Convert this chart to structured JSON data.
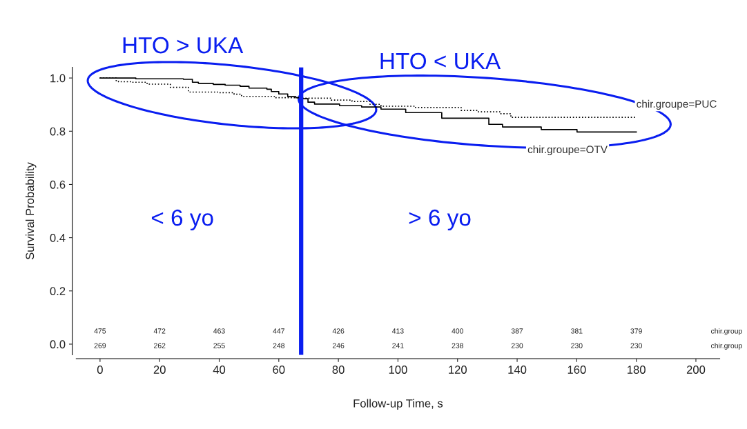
{
  "chart_data": {
    "type": "step",
    "xlabel": "Follow-up Time, s",
    "ylabel": "Survival Probability",
    "xlim": [
      -8,
      208
    ],
    "ylim": [
      -0.04,
      1.04
    ],
    "xticks": [
      0,
      20,
      40,
      60,
      80,
      100,
      120,
      140,
      160,
      180,
      200
    ],
    "yticks": [
      {
        "value": 0,
        "label": "0.0"
      },
      {
        "value": 0.2,
        "label": "0.2"
      },
      {
        "value": 0.4,
        "label": "0.4"
      },
      {
        "value": 0.6,
        "label": "0.6"
      },
      {
        "value": 0.8,
        "label": "0.8"
      },
      {
        "value": 1,
        "label": "1.0"
      }
    ],
    "grid": false,
    "legend": false,
    "series": [
      {
        "name": "chir.groupe=PUC",
        "color": "#000000",
        "line_style": "dotted",
        "x": [
          0,
          5.4,
          6.2,
          10.4,
          15.8,
          23.6,
          29.7,
          39.8,
          45,
          47.5,
          59,
          66.8,
          77.6,
          84.6,
          90.6,
          94.3,
          105.4,
          121.2,
          126.8,
          134.2,
          137.9,
          180
        ],
        "values": [
          1.0,
          0.99,
          0.986,
          0.984,
          0.977,
          0.965,
          0.947,
          0.945,
          0.939,
          0.931,
          0.926,
          0.924,
          0.917,
          0.912,
          0.901,
          0.894,
          0.889,
          0.878,
          0.873,
          0.866,
          0.852,
          0.852
        ]
      },
      {
        "name": "chir.groupe=OTV",
        "color": "#000000",
        "line_style": "solid",
        "x": [
          0,
          12,
          19,
          28,
          31,
          33,
          38,
          42,
          47,
          50,
          56,
          57.5,
          60,
          63,
          65.7,
          67.6,
          69.8,
          72,
          80.4,
          87.8,
          94.3,
          102.6,
          114.7,
          130.5,
          135.1,
          148.1,
          160.1,
          180
        ],
        "values": [
          1.0,
          0.997,
          0.997,
          0.995,
          0.984,
          0.98,
          0.976,
          0.973,
          0.969,
          0.962,
          0.958,
          0.949,
          0.94,
          0.93,
          0.926,
          0.922,
          0.909,
          0.902,
          0.896,
          0.891,
          0.883,
          0.87,
          0.849,
          0.826,
          0.816,
          0.806,
          0.797,
          0.797
        ]
      }
    ],
    "ref_lines": [
      {
        "axis": "x",
        "value": 67.5,
        "color": "#0a1ef0"
      }
    ],
    "annotations": [
      "HTO > UKA",
      "HTO < UKA",
      "< 6 yo",
      "> 6 yo",
      "475",
      "472",
      "463",
      "447",
      "426",
      "413",
      "400",
      "387",
      "381",
      "379",
      "chir.group",
      "269",
      "262",
      "255",
      "248",
      "246",
      "241",
      "238",
      "230",
      "230",
      "230",
      "chir.group"
    ]
  }
}
